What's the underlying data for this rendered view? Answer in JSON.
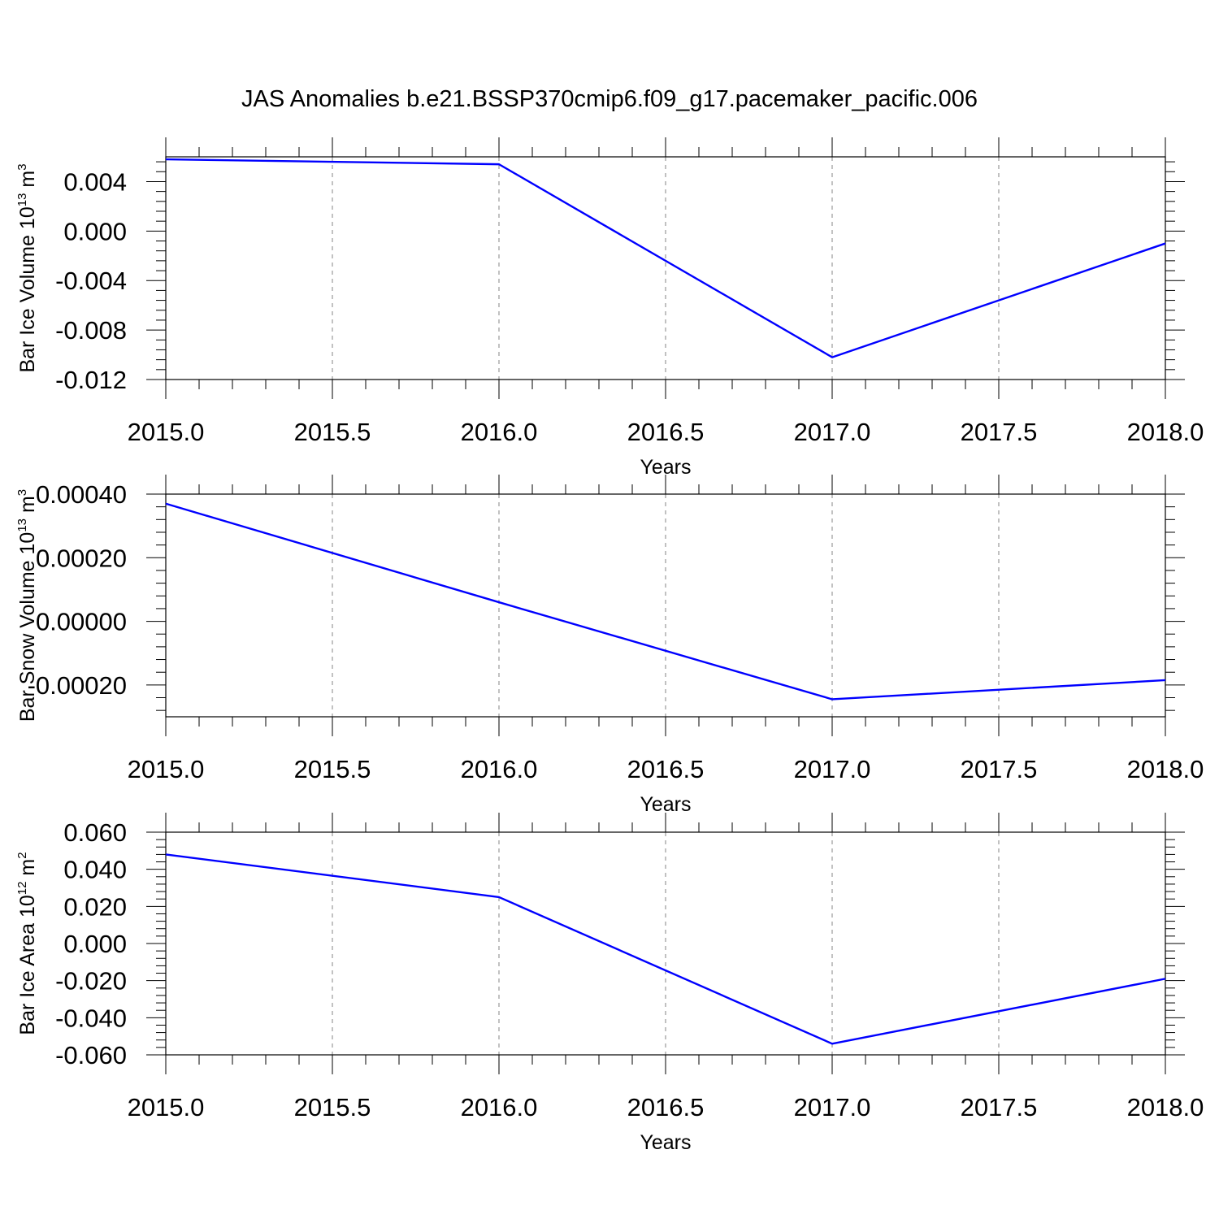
{
  "figure": {
    "title": "JAS Anomalies b.e21.BSSP370cmip6.f09_g17.pacemaker_pacific.006",
    "line_color": "#0000ff",
    "grid_color": "#a0a0a0",
    "axis_color": "#000000"
  },
  "chart_data": [
    {
      "type": "line",
      "title": "JAS Anomalies b.e21.BSSP370cmip6.f09_g17.pacemaker_pacific.006",
      "xlabel": "Years",
      "ylabel": {
        "text": "Bar Ice Volume 10",
        "sup": "13",
        "unit": " m",
        "unit_sup": "3"
      },
      "x": [
        2015.0,
        2016.0,
        2017.0,
        2018.0
      ],
      "series": [
        {
          "values": [
            0.0058,
            0.0054,
            -0.0102,
            -0.001
          ]
        }
      ],
      "xlim": [
        2015.0,
        2018.0
      ],
      "ylim": [
        -0.012,
        0.006
      ],
      "xticks": [
        2015.0,
        2015.5,
        2016.0,
        2016.5,
        2017.0,
        2017.5,
        2018.0
      ],
      "xtick_labels": [
        "2015.0",
        "2015.5",
        "2016.0",
        "2016.5",
        "2017.0",
        "2017.5",
        "2018.0"
      ],
      "yticks": [
        0.004,
        0.0,
        -0.004,
        -0.008,
        -0.012
      ],
      "ytick_labels": [
        "0.004",
        "0.000",
        "-0.004",
        "-0.008",
        "-0.012"
      ],
      "grid": "vertical dashed",
      "legend": "none"
    },
    {
      "type": "line",
      "xlabel": "Years",
      "ylabel": {
        "text": "Bar Snow Volume 10",
        "sup": "13",
        "unit": " m",
        "unit_sup": "3"
      },
      "x": [
        2015.0,
        2016.0,
        2017.0,
        2018.0
      ],
      "series": [
        {
          "values": [
            0.00037,
            6e-05,
            -0.000245,
            -0.000185
          ]
        }
      ],
      "xlim": [
        2015.0,
        2018.0
      ],
      "ylim": [
        -0.0003,
        0.0004
      ],
      "xticks": [
        2015.0,
        2015.5,
        2016.0,
        2016.5,
        2017.0,
        2017.5,
        2018.0
      ],
      "xtick_labels": [
        "2015.0",
        "2015.5",
        "2016.0",
        "2016.5",
        "2017.0",
        "2017.5",
        "2018.0"
      ],
      "yticks": [
        0.0004,
        0.0002,
        0.0,
        -0.0002
      ],
      "ytick_labels": [
        "0.00040",
        "0.00020",
        "0.00000",
        "-0.00020"
      ],
      "grid": "vertical dashed",
      "legend": "none"
    },
    {
      "type": "line",
      "xlabel": "Years",
      "ylabel": {
        "text": "Bar Ice Area 10",
        "sup": "12",
        "unit": " m",
        "unit_sup": "2"
      },
      "x": [
        2015.0,
        2016.0,
        2017.0,
        2018.0
      ],
      "series": [
        {
          "values": [
            0.048,
            0.025,
            -0.054,
            -0.019
          ]
        }
      ],
      "xlim": [
        2015.0,
        2018.0
      ],
      "ylim": [
        -0.06,
        0.06
      ],
      "xticks": [
        2015.0,
        2015.5,
        2016.0,
        2016.5,
        2017.0,
        2017.5,
        2018.0
      ],
      "xtick_labels": [
        "2015.0",
        "2015.5",
        "2016.0",
        "2016.5",
        "2017.0",
        "2017.5",
        "2018.0"
      ],
      "yticks": [
        0.06,
        0.04,
        0.02,
        0.0,
        -0.02,
        -0.04,
        -0.06
      ],
      "ytick_labels": [
        "0.060",
        "0.040",
        "0.020",
        "0.000",
        "-0.020",
        "-0.040",
        "-0.060"
      ],
      "grid": "vertical dashed",
      "legend": "none"
    }
  ]
}
